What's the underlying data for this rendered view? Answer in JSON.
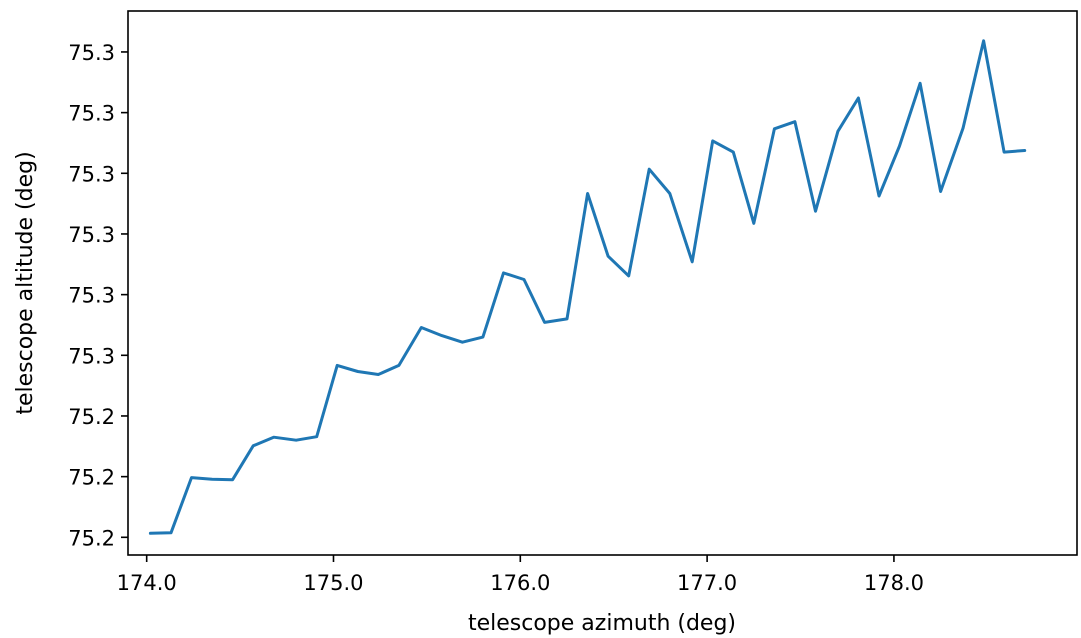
{
  "chart_data": {
    "type": "line",
    "title": "",
    "xlabel": "telescope azimuth (deg)",
    "ylabel": "telescope altitude (deg)",
    "xlim": [
      173.9,
      178.98
    ],
    "ylim": [
      75.1965,
      75.3041
    ],
    "x_ticks": [
      174.0,
      175.0,
      176.0,
      177.0,
      178.0
    ],
    "x_tick_labels": [
      "174.0",
      "175.0",
      "176.0",
      "177.0",
      "178.0"
    ],
    "y_ticks": [
      75.2,
      75.212,
      75.224,
      75.236,
      75.248,
      75.26,
      75.272,
      75.284,
      75.296
    ],
    "y_tick_labels": [
      "75.2",
      "75.2",
      "75.2",
      "75.3",
      "75.3",
      "75.3",
      "75.3",
      "75.3",
      "75.3"
    ],
    "grid": false,
    "line_color": "#1f77b4",
    "series": [
      {
        "name": "",
        "x": [
          174.02,
          174.13,
          174.24,
          174.35,
          174.46,
          174.57,
          174.68,
          174.8,
          174.91,
          175.02,
          175.13,
          175.24,
          175.35,
          175.47,
          175.58,
          175.69,
          175.8,
          175.91,
          176.02,
          176.13,
          176.25,
          176.36,
          176.47,
          176.58,
          176.69,
          176.8,
          176.92,
          177.03,
          177.14,
          177.25,
          177.36,
          177.47,
          177.58,
          177.7,
          177.81,
          177.92,
          178.03,
          178.14,
          178.25,
          178.37,
          178.48,
          178.59,
          178.7
        ],
        "y": [
          75.2008,
          75.2009,
          75.2118,
          75.2115,
          75.2114,
          75.2181,
          75.2198,
          75.2192,
          75.2199,
          75.234,
          75.2328,
          75.2322,
          75.234,
          75.2415,
          75.2399,
          75.2386,
          75.2396,
          75.2523,
          75.251,
          75.2425,
          75.2432,
          75.268,
          75.2556,
          75.2517,
          75.2728,
          75.268,
          75.2545,
          75.2784,
          75.2762,
          75.2621,
          75.2808,
          75.2822,
          75.2645,
          75.2803,
          75.2869,
          75.2675,
          75.2774,
          75.2898,
          75.2684,
          75.2809,
          75.2982,
          75.2762,
          75.2765
        ]
      }
    ]
  }
}
